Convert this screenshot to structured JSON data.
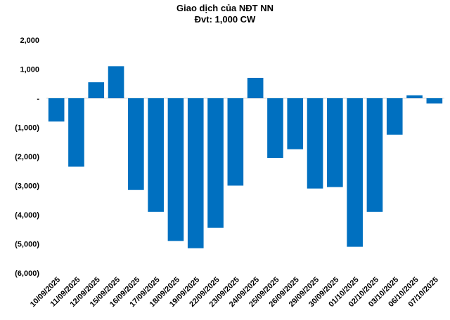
{
  "chart_data": {
    "type": "bar",
    "title": "Giao dịch của NĐT NN",
    "subtitle": "Đvt: 1,000 CW",
    "xlabel": "",
    "ylabel": "",
    "ylim": [
      -6000,
      2000
    ],
    "yticks": [
      2000,
      1000,
      0,
      -1000,
      -2000,
      -3000,
      -4000,
      -5000,
      -6000
    ],
    "ytick_labels": [
      "2,000",
      "1,000",
      "-",
      "(1,000)",
      "(2,000)",
      "(3,000)",
      "(4,000)",
      "(5,000)",
      "(6,000)"
    ],
    "grid": false,
    "bar_color": "#0070C0",
    "categories": [
      "10/09/2025",
      "11/09/2025",
      "12/09/2025",
      "15/09/2025",
      "16/09/2025",
      "17/09/2025",
      "18/09/2025",
      "19/09/2025",
      "22/09/2025",
      "23/09/2025",
      "24/09/2025",
      "25/09/2025",
      "26/09/2025",
      "29/09/2025",
      "30/09/2025",
      "01/10/2025",
      "02/10/2025",
      "03/10/2025",
      "06/10/2025",
      "07/10/2025"
    ],
    "values": [
      -800,
      -2350,
      550,
      1100,
      -3150,
      -3900,
      -4900,
      -5150,
      -4450,
      -3000,
      700,
      -2050,
      -1750,
      -3100,
      -3050,
      -5100,
      -3900,
      -1250,
      100,
      -180
    ]
  }
}
